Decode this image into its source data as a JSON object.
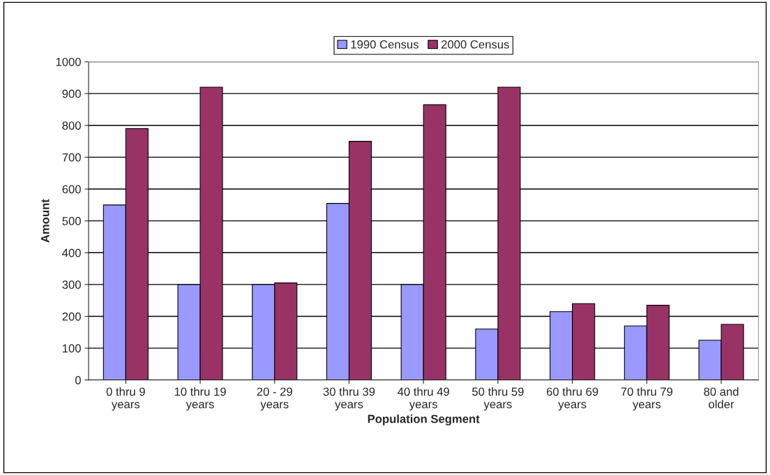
{
  "chart_data": {
    "type": "bar",
    "xlabel": "Population Segment",
    "ylabel": "Amount",
    "categories": [
      "0 thru 9\nyears",
      "10 thru 19\nyears",
      "20 - 29\nyears",
      "30 thru 39\nyears",
      "40 thru 49\nyears",
      "50 thru 59\nyears",
      "60 thru 69\nyears",
      "70 thru 79\nyears",
      "80 and\nolder"
    ],
    "series": [
      {
        "name": "1990 Census",
        "color": "#9999ff",
        "values": [
          550,
          300,
          300,
          555,
          300,
          160,
          215,
          170,
          125
        ]
      },
      {
        "name": "2000 Census",
        "color": "#993366",
        "values": [
          790,
          920,
          305,
          750,
          865,
          920,
          240,
          235,
          175
        ]
      }
    ],
    "ylim": [
      0,
      1000
    ],
    "yticks": [
      0,
      100,
      200,
      300,
      400,
      500,
      600,
      700,
      800,
      900,
      1000
    ],
    "grid": "y",
    "legend": "top"
  }
}
